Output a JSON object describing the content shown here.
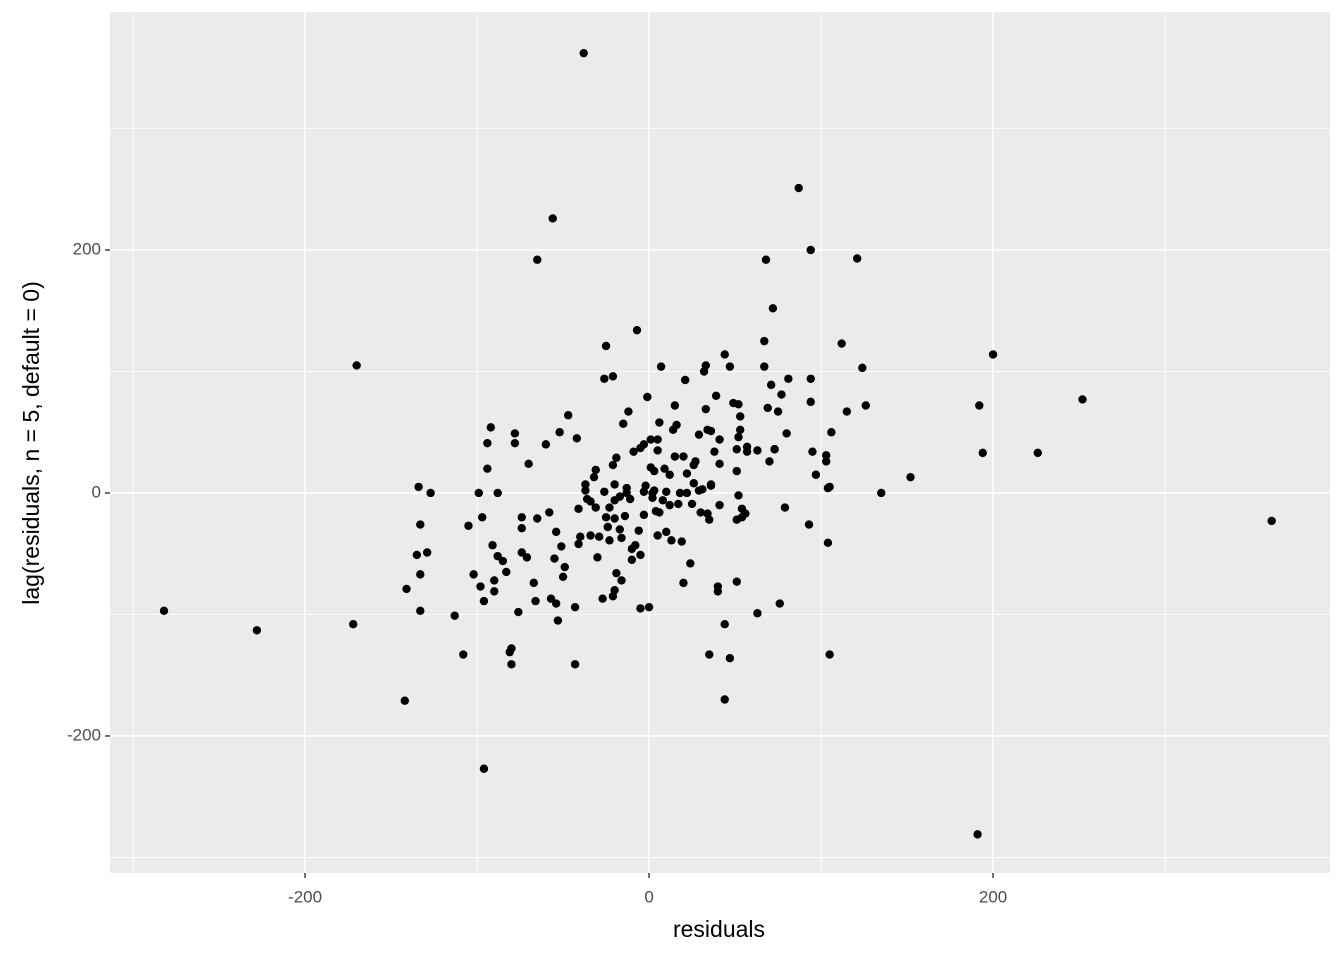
{
  "chart_data": {
    "type": "scatter",
    "x_label": "residuals",
    "y_label": "lag(residuals, n = 5, default = 0)",
    "xlim": [
      -313.4,
      395.9
    ],
    "ylim": [
      -312.8,
      395.9
    ],
    "xticks": [
      -200,
      0,
      200
    ],
    "yticks": [
      -200,
      0,
      200
    ],
    "x_minor_grid": [
      -300,
      -100,
      100,
      300
    ],
    "y_minor_grid": [
      -300,
      -100,
      100,
      300
    ],
    "grid": true,
    "color": "#000000",
    "x": [
      -282,
      -228,
      -170,
      -172,
      -142,
      -141,
      -134,
      -133,
      -135,
      -133,
      -133,
      -129,
      -127,
      -113,
      -108,
      -105,
      -102,
      -99,
      -98,
      -97,
      -96,
      -96,
      -94,
      -94,
      -92,
      -91,
      -90,
      -90,
      -88,
      -88,
      -85,
      -83,
      -81,
      -80,
      -80,
      -78,
      -78,
      -76,
      -74,
      -74,
      -74,
      -71,
      -70,
      -67,
      -66,
      -65,
      -65,
      -60,
      -58,
      -57,
      -56,
      -55,
      -54,
      -54,
      -53,
      -52,
      -51,
      -50,
      -49,
      -47,
      -43,
      -43,
      -42,
      -41,
      -41,
      -40,
      -38,
      -37,
      -37,
      -36,
      -34,
      -34,
      -32,
      -31,
      -31,
      -30,
      -29,
      -27,
      -26,
      -26,
      -25,
      -25,
      -24,
      -23,
      -23,
      -21,
      -21,
      -21,
      -20,
      -20,
      -20,
      -20,
      -19,
      -19,
      -17,
      -17,
      -16,
      -16,
      -15,
      -14,
      -13,
      -13,
      -12,
      -11,
      -10,
      -10,
      -9,
      -8,
      -7,
      -6,
      -5,
      -5,
      -5,
      -3,
      -3,
      -3,
      -2,
      -1,
      0,
      1,
      1,
      2,
      2,
      3,
      3,
      4,
      5,
      5,
      5,
      6,
      6,
      7,
      8,
      9,
      10,
      10,
      12,
      12,
      13,
      14,
      15,
      15,
      16,
      17,
      18,
      19,
      20,
      20,
      21,
      22,
      22,
      24,
      25,
      26,
      26,
      27,
      29,
      29,
      30,
      31,
      32,
      33,
      33,
      34,
      34,
      35,
      35,
      36,
      36,
      36,
      38,
      39,
      40,
      40,
      41,
      41,
      41,
      44,
      44,
      44,
      47,
      47,
      49,
      51,
      51,
      51,
      51,
      52,
      52,
      52,
      53,
      53,
      54,
      54,
      56,
      57,
      57,
      63,
      63,
      67,
      67,
      68,
      69,
      70,
      71,
      72,
      73,
      73,
      75,
      76,
      77,
      79,
      80,
      81,
      87,
      93,
      94,
      94,
      94,
      95,
      97,
      103,
      103,
      104,
      104,
      105,
      105,
      106,
      112,
      115,
      121,
      124,
      126,
      135,
      152,
      191,
      192,
      194,
      200,
      226,
      252,
      362
    ],
    "y": [
      -97,
      -113,
      105,
      -108,
      -171,
      -79,
      5,
      -26,
      -51,
      -67,
      -97,
      -49,
      0,
      -101,
      -133,
      -27,
      -67,
      0,
      -77,
      -20,
      -227,
      -89,
      20,
      41,
      54,
      -43,
      -72,
      -81,
      0,
      -52,
      -56,
      -65,
      -131,
      -128,
      -141,
      49,
      41,
      -98,
      -29,
      -20,
      -49,
      -53,
      24,
      -74,
      -89,
      -21,
      192,
      40,
      -16,
      -87,
      226,
      -54,
      -32,
      -91,
      -105,
      50,
      -44,
      -69,
      -61,
      64,
      -141,
      -94,
      45,
      -42,
      -13,
      -36,
      362,
      7,
      2,
      -5,
      -35,
      -7,
      13,
      -12,
      19,
      -53,
      -36,
      -87,
      1,
      94,
      121,
      -20,
      -28,
      -12,
      -39,
      -85,
      23,
      96,
      -21,
      7,
      -6,
      -80,
      -66,
      29,
      -30,
      -3,
      -72,
      -37,
      57,
      -19,
      4,
      0,
      67,
      -5,
      -46,
      -55,
      34,
      -43,
      134,
      -31,
      -95,
      37,
      -51,
      1,
      40,
      -18,
      6,
      79,
      -94,
      44,
      21,
      0,
      -4,
      2,
      18,
      -15,
      35,
      44,
      -35,
      -16,
      58,
      104,
      -6,
      20,
      -32,
      1,
      -10,
      15,
      -39,
      52,
      72,
      30,
      56,
      -9,
      0,
      -40,
      -74,
      30,
      93,
      0,
      16,
      -58,
      -9,
      23,
      8,
      26,
      48,
      2,
      -16,
      3,
      100,
      69,
      105,
      -17,
      52,
      -133,
      -22,
      6,
      7,
      51,
      34,
      80,
      -81,
      -77,
      -10,
      44,
      24,
      -170,
      114,
      -108,
      -136,
      104,
      74,
      -22,
      -73,
      36,
      18,
      -2,
      73,
      46,
      63,
      52,
      -20,
      -13,
      -17,
      38,
      34,
      -99,
      35,
      104,
      125,
      192,
      70,
      26,
      89,
      152,
      36,
      36,
      67,
      -91,
      81,
      -12,
      49,
      94,
      251,
      -26,
      200,
      75,
      94,
      34,
      15,
      31,
      26,
      -41,
      4,
      -133,
      5,
      50,
      123,
      67,
      193,
      103,
      72,
      0,
      13,
      -281,
      72,
      33,
      114,
      33,
      77,
      -23
    ]
  }
}
